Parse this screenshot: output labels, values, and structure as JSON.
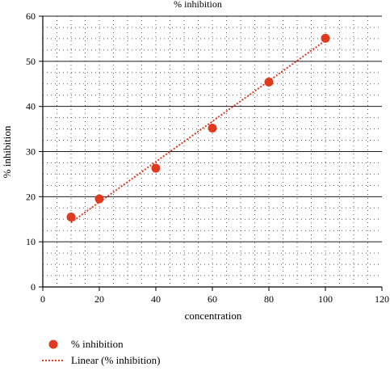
{
  "chart_data": {
    "type": "scatter",
    "title": "% inhibition",
    "xlabel": "concentration",
    "ylabel": "% inhibition",
    "xlim": [
      0,
      120
    ],
    "ylim": [
      0,
      60
    ],
    "x_ticks": [
      0,
      20,
      40,
      60,
      80,
      100,
      120
    ],
    "y_ticks": [
      0,
      10,
      20,
      30,
      40,
      50,
      60
    ],
    "grid": {
      "major_horizontal": true,
      "minor_dotted": true
    },
    "legend_placement": "bottom-left",
    "series": [
      {
        "name": "% inhibition",
        "kind": "scatter",
        "color": "#e03a1e",
        "x": [
          10,
          20,
          40,
          60,
          80,
          100
        ],
        "y": [
          15.5,
          19.5,
          26.3,
          35.2,
          45.4,
          55.1
        ]
      },
      {
        "name": "Linear (% inhibition)",
        "kind": "trendline",
        "color": "#e03a1e",
        "style": "dotted",
        "x": [
          10,
          100
        ],
        "y": [
          14.3,
          54.6
        ]
      }
    ]
  }
}
